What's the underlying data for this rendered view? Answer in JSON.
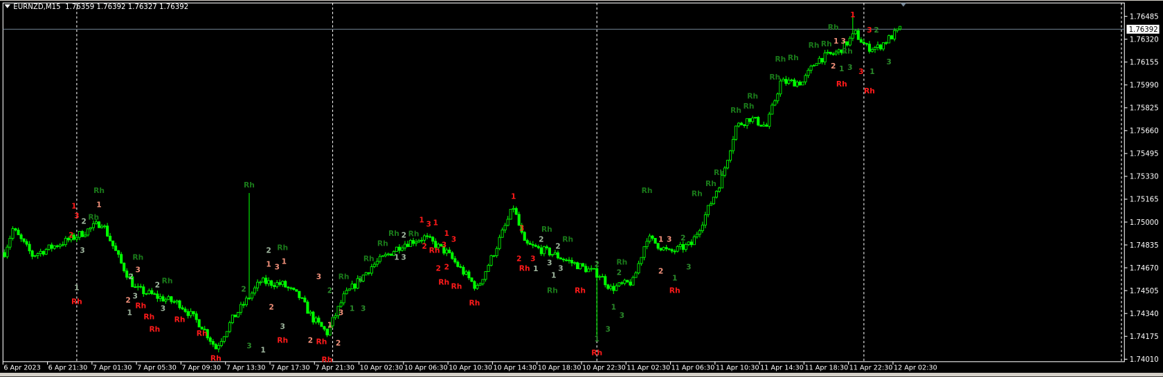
{
  "window": {
    "symbol_timeframe": "EURNZD,M15",
    "ohlc": "1.76359 1.76392 1.76327 1.76392"
  },
  "colors": {
    "background": "#000000",
    "candle": "#00ff00",
    "axis": "#ffffff",
    "bid_line": "#778899",
    "label_red": "#ff1a1a",
    "label_green": "#1a7a1a",
    "label_salmon": "#f0907a",
    "label_sage": "#a0b8a0",
    "label_dkgreen": "#2a8a2a"
  },
  "price_axis": {
    "ticks": [
      "1.76485",
      "1.76320",
      "1.76155",
      "1.75990",
      "1.75825",
      "1.75660",
      "1.75495",
      "1.75330",
      "1.75165",
      "1.75000",
      "1.74835",
      "1.74670",
      "1.74505",
      "1.74340",
      "1.74175",
      "1.74010"
    ],
    "current_price": "1.76392"
  },
  "time_axis": {
    "labels": [
      "6 Apr 2023",
      "6 Apr 21:30",
      "7 Apr 01:30",
      "7 Apr 05:30",
      "7 Apr 09:30",
      "7 Apr 13:30",
      "7 Apr 17:30",
      "7 Apr 21:30",
      "10 Apr 02:30",
      "10 Apr 06:30",
      "10 Apr 10:30",
      "10 Apr 14:30",
      "10 Apr 18:30",
      "10 Apr 22:30",
      "11 Apr 02:30",
      "11 Apr 06:30",
      "11 Apr 10:30",
      "11 Apr 14:30",
      "11 Apr 18:30",
      "11 Apr 22:30",
      "12 Apr 02:30"
    ],
    "bars_per_label": 16
  },
  "period_separators_bar": [
    26,
    118,
    213,
    309
  ],
  "price_path": [
    [
      0,
      1.7478
    ],
    [
      3,
      1.7495
    ],
    [
      10,
      1.7476
    ],
    [
      23,
      1.7487
    ],
    [
      28,
      1.7492
    ],
    [
      35,
      1.75
    ],
    [
      42,
      1.747
    ],
    [
      47,
      1.7452
    ],
    [
      55,
      1.7446
    ],
    [
      63,
      1.7441
    ],
    [
      71,
      1.7425
    ],
    [
      76,
      1.7409
    ],
    [
      82,
      1.743
    ],
    [
      88,
      1.7446
    ],
    [
      92,
      1.7457
    ],
    [
      100,
      1.7455
    ],
    [
      106,
      1.7446
    ],
    [
      111,
      1.743
    ],
    [
      116,
      1.742
    ],
    [
      122,
      1.7446
    ],
    [
      132,
      1.7468
    ],
    [
      143,
      1.7484
    ],
    [
      151,
      1.7489
    ],
    [
      159,
      1.7478
    ],
    [
      170,
      1.7452
    ],
    [
      176,
      1.7478
    ],
    [
      183,
      1.7511
    ],
    [
      187,
      1.7484
    ],
    [
      196,
      1.7478
    ],
    [
      207,
      1.7468
    ],
    [
      214,
      1.7462
    ],
    [
      218,
      1.7452
    ],
    [
      226,
      1.7457
    ],
    [
      231,
      1.7489
    ],
    [
      239,
      1.7478
    ],
    [
      247,
      1.7484
    ],
    [
      252,
      1.7505
    ],
    [
      258,
      1.7532
    ],
    [
      263,
      1.7569
    ],
    [
      268,
      1.7575
    ],
    [
      274,
      1.7569
    ],
    [
      279,
      1.7601
    ],
    [
      287,
      1.7601
    ],
    [
      292,
      1.7617
    ],
    [
      300,
      1.7623
    ],
    [
      306,
      1.7636
    ],
    [
      310,
      1.7626
    ],
    [
      314,
      1.7626
    ],
    [
      322,
      1.7639
    ]
  ],
  "wick_extremes": [
    [
      88,
      "high",
      1.7521
    ],
    [
      213,
      "low",
      1.7418
    ],
    [
      305,
      "high",
      1.7648
    ]
  ],
  "labels": [
    [
      25,
      1.7512,
      "1",
      "red"
    ],
    [
      26,
      1.7508,
      "3",
      "red"
    ],
    [
      24,
      1.7491,
      "2",
      "red"
    ],
    [
      28,
      1.7501,
      "2",
      "sage"
    ],
    [
      28,
      1.748,
      "3",
      "sage"
    ],
    [
      26,
      1.7453,
      "1",
      "sage"
    ],
    [
      26,
      1.7443,
      "Rh",
      "red"
    ],
    [
      34,
      1.7523,
      "Rh",
      "green"
    ],
    [
      34,
      1.7513,
      "1",
      "salmon"
    ],
    [
      31,
      1.7506,
      "Rh",
      "green"
    ],
    [
      48,
      1.7475,
      "Rh",
      "green"
    ],
    [
      48,
      1.7466,
      "3",
      "salmon"
    ],
    [
      46,
      1.7461,
      "2",
      "sage"
    ],
    [
      47,
      1.7447,
      "3",
      "sage"
    ],
    [
      45,
      1.7444,
      "2",
      "salmon"
    ],
    [
      49,
      1.7442,
      "Rh",
      "red"
    ],
    [
      45,
      1.7435,
      "1",
      "sage"
    ],
    [
      52,
      1.7433,
      "Rh",
      "red"
    ],
    [
      55,
      1.7455,
      "2",
      "sage"
    ],
    [
      58,
      1.7458,
      "Rh",
      "green"
    ],
    [
      57,
      1.7438,
      "3",
      "sage"
    ],
    [
      54,
      1.7423,
      "Rh",
      "red"
    ],
    [
      63,
      1.743,
      "Rh",
      "red"
    ],
    [
      71,
      1.742,
      "Rh",
      "red"
    ],
    [
      76,
      1.7402,
      "Rh",
      "red"
    ],
    [
      88,
      1.7527,
      "Rh",
      "green"
    ],
    [
      86,
      1.7452,
      "2",
      "dkgreen"
    ],
    [
      88,
      1.7411,
      "3",
      "dkgreen"
    ],
    [
      93,
      1.7408,
      "1",
      "sage"
    ],
    [
      95,
      1.748,
      "2",
      "sage"
    ],
    [
      95,
      1.747,
      "1",
      "salmon"
    ],
    [
      98,
      1.7468,
      "3",
      "salmon"
    ],
    [
      100,
      1.7472,
      "1",
      "salmon"
    ],
    [
      100,
      1.7482,
      "Rh",
      "green"
    ],
    [
      96,
      1.7439,
      "2",
      "salmon"
    ],
    [
      100,
      1.7425,
      "3",
      "sage"
    ],
    [
      100,
      1.7415,
      "Rh",
      "red"
    ],
    [
      113,
      1.7461,
      "3",
      "salmon"
    ],
    [
      117,
      1.7426,
      "1",
      "salmon"
    ],
    [
      117,
      1.7451,
      "2",
      "dkgreen"
    ],
    [
      121,
      1.7435,
      "3",
      "salmon"
    ],
    [
      110,
      1.7415,
      "2",
      "salmon"
    ],
    [
      114,
      1.7414,
      "Rh",
      "red"
    ],
    [
      120,
      1.7413,
      "2",
      "salmon"
    ],
    [
      116,
      1.7401,
      "Rh",
      "red"
    ],
    [
      122,
      1.7461,
      "Rh",
      "green"
    ],
    [
      128,
      1.7459,
      "2",
      "dkgreen"
    ],
    [
      125,
      1.7438,
      "1",
      "dkgreen"
    ],
    [
      129,
      1.7438,
      "3",
      "dkgreen"
    ],
    [
      131,
      1.7474,
      "Rh",
      "green"
    ],
    [
      136,
      1.7485,
      "Rh",
      "green"
    ],
    [
      140,
      1.7491,
      "Rh",
      "green"
    ],
    [
      142,
      1.7491,
      "2",
      "sage"
    ],
    [
      141,
      1.7475,
      "1",
      "sage"
    ],
    [
      143,
      1.7475,
      "3",
      "sage"
    ],
    [
      145,
      1.7492,
      "Rh",
      "green"
    ],
    [
      150,
      1.7502,
      "1",
      "red"
    ],
    [
      152,
      1.7499,
      "3",
      "red"
    ],
    [
      155,
      1.75,
      "1",
      "red"
    ],
    [
      151,
      1.7483,
      "2",
      "red"
    ],
    [
      153,
      1.748,
      "Rh",
      "red"
    ],
    [
      157,
      1.7484,
      "3",
      "red"
    ],
    [
      159,
      1.7491,
      "1",
      "red"
    ],
    [
      161,
      1.7488,
      "3",
      "red"
    ],
    [
      156,
      1.7467,
      "2",
      "red"
    ],
    [
      159,
      1.7468,
      "2",
      "red"
    ],
    [
      158,
      1.7457,
      "Rh",
      "red"
    ],
    [
      162,
      1.7454,
      "Rh",
      "red"
    ],
    [
      169,
      1.7442,
      "Rh",
      "red"
    ],
    [
      183,
      1.7519,
      "1",
      "red"
    ],
    [
      186,
      1.7496,
      "3",
      "red"
    ],
    [
      185,
      1.7474,
      "2",
      "red"
    ],
    [
      187,
      1.7468,
      "Rh",
      "red"
    ],
    [
      190,
      1.7474,
      "3",
      "red"
    ],
    [
      193,
      1.7488,
      "2",
      "sage"
    ],
    [
      191,
      1.747,
      "1",
      "sage"
    ],
    [
      195,
      1.7492,
      "Rh",
      "green"
    ],
    [
      196,
      1.7471,
      "3",
      "sage"
    ],
    [
      199,
      1.7483,
      "2",
      "sage"
    ],
    [
      200,
      1.7467,
      "3",
      "sage"
    ],
    [
      202,
      1.7488,
      "Rh",
      "green"
    ],
    [
      198,
      1.7462,
      "1",
      "sage"
    ],
    [
      197,
      1.7451,
      "Rh",
      "green"
    ],
    [
      207,
      1.7451,
      "Rh",
      "red"
    ],
    [
      213,
      1.747,
      "2",
      "dkgreen"
    ],
    [
      221,
      1.7464,
      "2",
      "dkgreen"
    ],
    [
      222,
      1.7466,
      "Rh",
      "green"
    ],
    [
      219,
      1.7439,
      "1",
      "dkgreen"
    ],
    [
      222,
      1.7433,
      "3",
      "dkgreen"
    ],
    [
      217,
      1.7423,
      "3",
      "dkgreen"
    ],
    [
      213,
      1.7416,
      "1",
      "dkgreen"
    ],
    [
      213,
      1.7406,
      "Rh",
      "red"
    ],
    [
      231,
      1.7523,
      "Rh",
      "green"
    ],
    [
      236,
      1.7488,
      "1",
      "salmon"
    ],
    [
      239,
      1.7488,
      "3",
      "salmon"
    ],
    [
      244,
      1.7489,
      "2",
      "dkgreen"
    ],
    [
      236,
      1.7465,
      "2",
      "salmon"
    ],
    [
      241,
      1.746,
      "1",
      "dkgreen"
    ],
    [
      246,
      1.7468,
      "3",
      "dkgreen"
    ],
    [
      241,
      1.7451,
      "Rh",
      "red"
    ],
    [
      249,
      1.7521,
      "Rh",
      "green"
    ],
    [
      254,
      1.7528,
      "Rh",
      "green"
    ],
    [
      257,
      1.7536,
      "Rh",
      "green"
    ],
    [
      263,
      1.7581,
      "Rh",
      "green"
    ],
    [
      266,
      1.7584,
      "Rh",
      "green"
    ],
    [
      269,
      1.7588,
      "Rh",
      "green"
    ],
    [
      277,
      1.7605,
      "Rh",
      "green"
    ],
    [
      279,
      1.7618,
      "Rh",
      "green"
    ],
    [
      282,
      1.7619,
      "Rh",
      "green"
    ],
    [
      291,
      1.7628,
      "Rh",
      "green"
    ],
    [
      295,
      1.7629,
      "Rh",
      "green"
    ],
    [
      298,
      1.7641,
      "Rh",
      "green"
    ],
    [
      299,
      1.7631,
      "1",
      "salmon"
    ],
    [
      300,
      1.7631,
      "3",
      "salmon"
    ],
    [
      303,
      1.7628,
      "Rh",
      "green"
    ],
    [
      298,
      1.7613,
      "2",
      "salmon"
    ],
    [
      301,
      1.7611,
      "1",
      "dkgreen"
    ],
    [
      304,
      1.7612,
      "3",
      "dkgreen"
    ],
    [
      301,
      1.76,
      "Rh",
      "red"
    ],
    [
      305,
      1.765,
      "1",
      "red"
    ],
    [
      311,
      1.7639,
      "3",
      "red"
    ],
    [
      313,
      1.7639,
      "2",
      "dkgreen"
    ],
    [
      308,
      1.7609,
      "3",
      "red"
    ],
    [
      312,
      1.7609,
      "1",
      "dkgreen"
    ],
    [
      318,
      1.7616,
      "3",
      "dkgreen"
    ],
    [
      311,
      1.7595,
      "Rh",
      "red"
    ]
  ]
}
